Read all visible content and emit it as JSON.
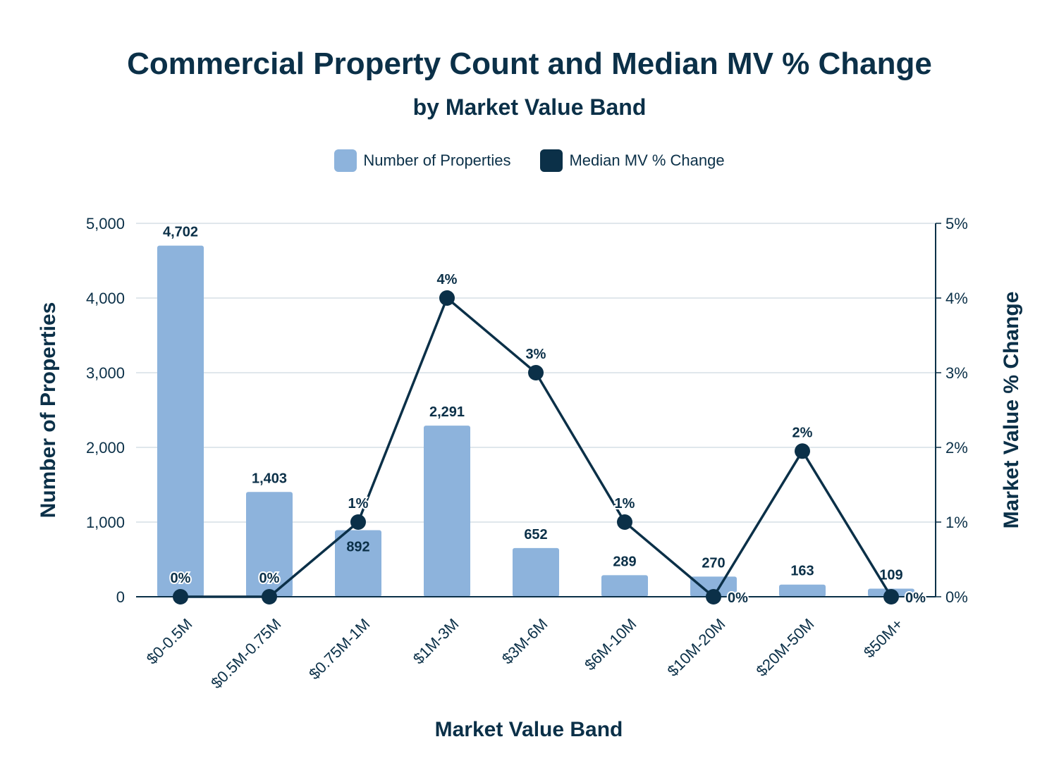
{
  "chart_data": {
    "type": "bar",
    "title": "Commercial Property Count and Median MV % Change",
    "subtitle": "by Market Value Band",
    "xlabel": "Market Value Band",
    "ylabel": "Number of Properties",
    "y2label": "Market Value % Change",
    "categories": [
      "$0-0.5M",
      "$0.5M-0.75M",
      "$0.75M-1M",
      "$1M-3M",
      "$3M-6M",
      "$6M-10M",
      "$10M-20M",
      "$20M-50M",
      "$50M+"
    ],
    "ylim": [
      0,
      5000
    ],
    "y2lim": [
      0,
      5
    ],
    "yticks": [
      "0",
      "1,000",
      "2,000",
      "3,000",
      "4,000",
      "5,000"
    ],
    "y2ticks": [
      "0%",
      "1%",
      "2%",
      "3%",
      "4%",
      "5%"
    ],
    "grid": true,
    "legend_position": "top-center",
    "series": [
      {
        "name": "Number of Properties",
        "type": "bar",
        "axis": "left",
        "color": "#8db3dc",
        "values": [
          4702,
          1403,
          892,
          2291,
          652,
          289,
          270,
          163,
          109
        ],
        "labels": [
          "4,702",
          "1,403",
          "892",
          "2,291",
          "652",
          "289",
          "270",
          "163",
          "109"
        ]
      },
      {
        "name": "Median MV % Change",
        "type": "line",
        "axis": "right",
        "color": "#0b3048",
        "values": [
          0.0,
          0.0,
          1.0,
          4.0,
          3.0,
          1.0,
          0.0,
          1.95,
          0.0
        ],
        "labels": [
          "0%",
          "0%",
          "1%",
          "4%",
          "3%",
          "1%",
          "0%",
          "2%",
          "0%"
        ]
      }
    ]
  }
}
